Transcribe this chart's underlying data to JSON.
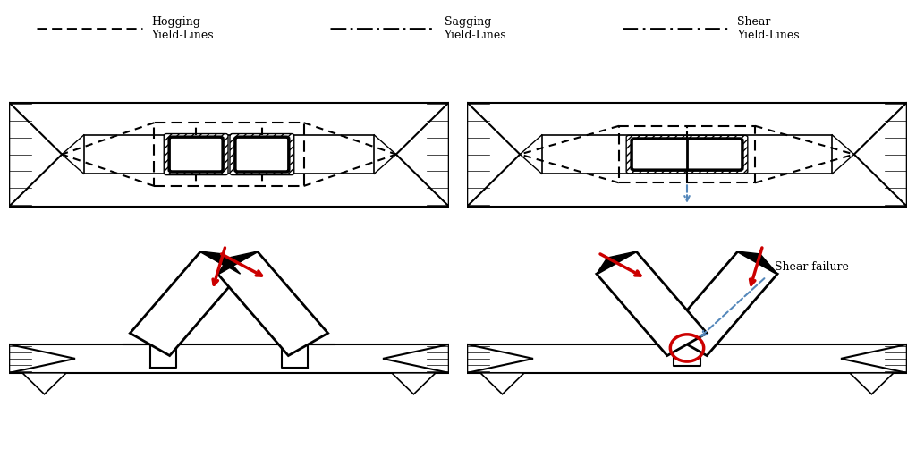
{
  "bg": "#ffffff",
  "arrow_red": "#cc0000",
  "arrow_blue": "#5588bb",
  "shear_text": "Shear failure",
  "legend_hogging": "Hogging\nYield-Lines",
  "legend_sagging": "Sagging\nYield-Lines",
  "legend_shear": "Shear\nYield-Lines"
}
